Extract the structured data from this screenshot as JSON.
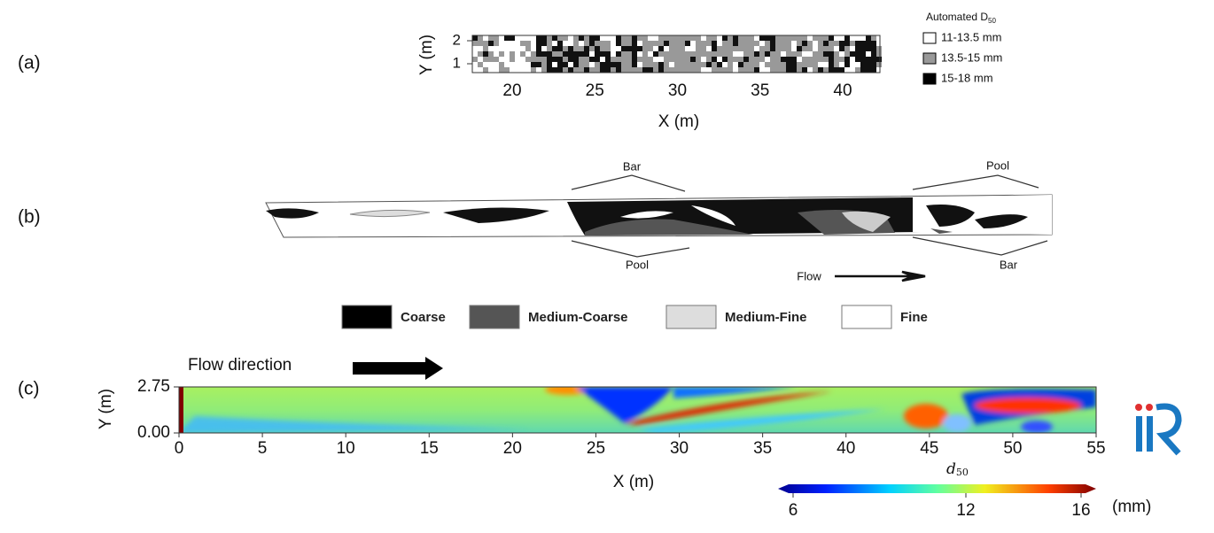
{
  "panels": [
    {
      "label": "(a)",
      "y_axis_label": "Y (m)",
      "x_axis_label": "X (m)",
      "yticks": [
        "2",
        "1"
      ],
      "xticks": [
        "20",
        "25",
        "30",
        "35",
        "40"
      ],
      "legend": {
        "title": "Automated D",
        "title_subscript": "50",
        "items": [
          "11-13.5 mm",
          "13.5-15 mm",
          "15-18 mm"
        ]
      }
    },
    {
      "label": "(b)",
      "annotations": {
        "bar_top": "Bar",
        "pool_top": "Pool",
        "pool_bottom": "Pool",
        "bar_bottom": "Bar",
        "flow": "Flow"
      },
      "legend": [
        "Coarse",
        "Medium-Coarse",
        "Medium-Fine",
        "Fine"
      ]
    },
    {
      "label": "(c)",
      "flow_label": "Flow direction",
      "y_axis_label": "Y (m)",
      "x_axis_label": "X (m)",
      "yticks": [
        "2.75",
        "0.00"
      ],
      "xticks": [
        "0",
        "5",
        "10",
        "15",
        "20",
        "25",
        "30",
        "35",
        "40",
        "45",
        "50",
        "55"
      ],
      "colorbar": {
        "label": "d",
        "label_subscript": "50",
        "ticks": [
          "6",
          "12",
          "16"
        ],
        "unit": "(mm)"
      }
    }
  ]
}
